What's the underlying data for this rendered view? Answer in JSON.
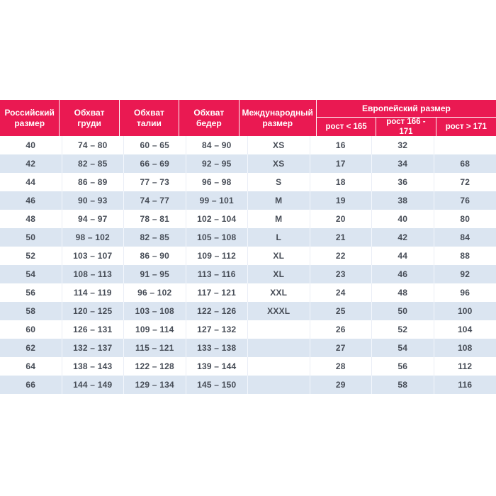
{
  "colors": {
    "header_bg": "#ea1952",
    "header_text": "#ffffff",
    "row_alt_bg": "#dbe5f1",
    "row_bg": "#ffffff",
    "cell_text": "#474d57"
  },
  "table": {
    "column_headers": {
      "russian_size": "Российский размер",
      "chest": "Обхват груди",
      "waist": "Обхват талии",
      "hips": "Обхват бедер",
      "international_size": "Международный размер",
      "european_size_group": "Европейский размер",
      "height_under_165": "рост < 165",
      "height_166_171": "рост 166 - 171",
      "height_over_171": "рост > 171"
    },
    "rows": [
      [
        "40",
        "74 – 80",
        "60 – 65",
        "84 – 90",
        "XS",
        "16",
        "32",
        ""
      ],
      [
        "42",
        "82 – 85",
        "66 – 69",
        "92 – 95",
        "XS",
        "17",
        "34",
        "68"
      ],
      [
        "44",
        "86 – 89",
        "77 – 73",
        "96 – 98",
        "S",
        "18",
        "36",
        "72"
      ],
      [
        "46",
        "90 – 93",
        "74 – 77",
        "99 – 101",
        "M",
        "19",
        "38",
        "76"
      ],
      [
        "48",
        "94 – 97",
        "78 – 81",
        "102 – 104",
        "M",
        "20",
        "40",
        "80"
      ],
      [
        "50",
        "98 – 102",
        "82 – 85",
        "105 – 108",
        "L",
        "21",
        "42",
        "84"
      ],
      [
        "52",
        "103 – 107",
        "86 – 90",
        "109 – 112",
        "XL",
        "22",
        "44",
        "88"
      ],
      [
        "54",
        "108 – 113",
        "91 – 95",
        "113 – 116",
        "XL",
        "23",
        "46",
        "92"
      ],
      [
        "56",
        "114 – 119",
        "96 – 102",
        "117 – 121",
        "XXL",
        "24",
        "48",
        "96"
      ],
      [
        "58",
        "120 – 125",
        "103 – 108",
        "122 – 126",
        "XXXL",
        "25",
        "50",
        "100"
      ],
      [
        "60",
        "126 – 131",
        "109 – 114",
        "127 – 132",
        "",
        "26",
        "52",
        "104"
      ],
      [
        "62",
        "132 – 137",
        "115 – 121",
        "133 – 138",
        "",
        "27",
        "54",
        "108"
      ],
      [
        "64",
        "138 – 143",
        "122 – 128",
        "139 – 144",
        "",
        "28",
        "56",
        "112"
      ],
      [
        "66",
        "144 – 149",
        "129 – 134",
        "145 – 150",
        "",
        "29",
        "58",
        "116"
      ]
    ]
  }
}
